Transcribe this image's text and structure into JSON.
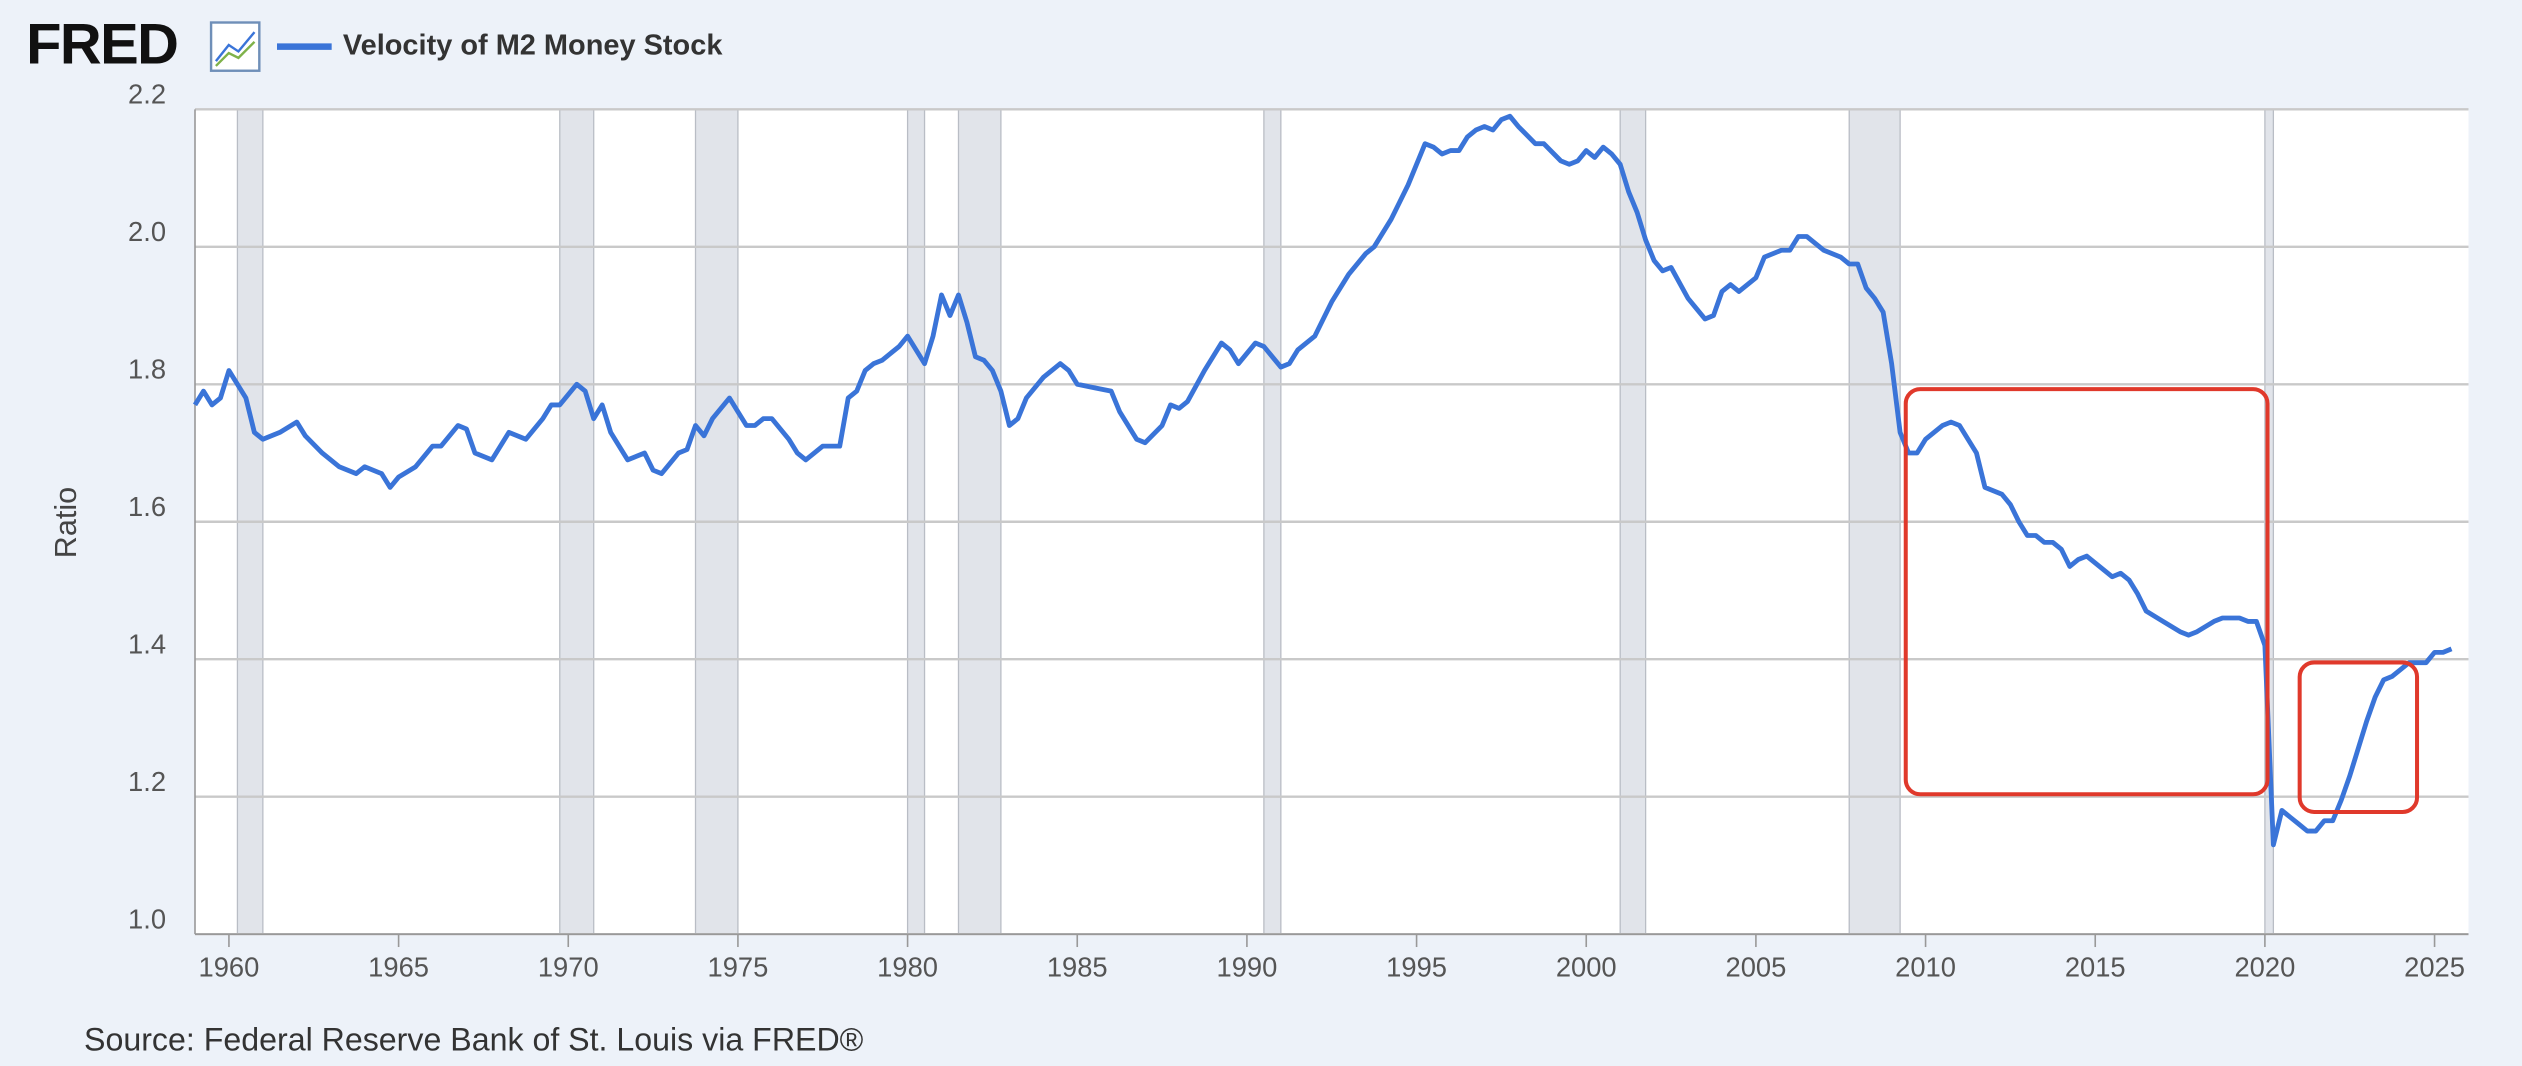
{
  "chart_data": {
    "type": "line",
    "logo": "FRED",
    "y_label": "Ratio",
    "source": "Source: Federal Reserve Bank of St. Louis via FRED®",
    "x": [
      1959,
      1959.25,
      1959.5,
      1959.75,
      1960,
      1960.25,
      1960.5,
      1960.75,
      1961,
      1961.5,
      1962,
      1962.25,
      1962.75,
      1963.25,
      1963.75,
      1964,
      1964.5,
      1964.75,
      1965,
      1965.5,
      1966,
      1966.25,
      1966.75,
      1967,
      1967.25,
      1967.75,
      1968.25,
      1968.75,
      1969.25,
      1969.5,
      1969.75,
      1970.25,
      1970.5,
      1970.75,
      1971,
      1971.25,
      1971.75,
      1972.25,
      1972.5,
      1972.75,
      1973.25,
      1973.5,
      1973.75,
      1974,
      1974.25,
      1974.75,
      1975,
      1975.25,
      1975.5,
      1975.75,
      1976,
      1976.5,
      1976.75,
      1977,
      1977.5,
      1978,
      1978.25,
      1978.5,
      1978.75,
      1979,
      1979.25,
      1979.75,
      1980,
      1980.25,
      1980.5,
      1980.75,
      1981,
      1981.25,
      1981.5,
      1981.75,
      1982,
      1982.25,
      1982.5,
      1982.75,
      1983,
      1983.25,
      1983.5,
      1984,
      1984.5,
      1984.75,
      1985,
      1985.5,
      1986,
      1986.25,
      1986.75,
      1987,
      1987.5,
      1987.75,
      1988,
      1988.25,
      1988.75,
      1989.25,
      1989.5,
      1989.75,
      1990.25,
      1990.5,
      1990.75,
      1991,
      1991.25,
      1991.5,
      1992,
      1992.5,
      1993,
      1993.5,
      1993.75,
      1994.25,
      1994.75,
      1995,
      1995.25,
      1995.5,
      1995.75,
      1996,
      1996.25,
      1996.5,
      1996.75,
      1997,
      1997.25,
      1997.5,
      1997.75,
      1998,
      1998.5,
      1998.75,
      1999.25,
      1999.5,
      1999.75,
      2000,
      2000.25,
      2000.5,
      2000.75,
      2001,
      2001.25,
      2001.5,
      2001.75,
      2002,
      2002.25,
      2002.5,
      2003,
      2003.25,
      2003.5,
      2003.75,
      2004,
      2004.25,
      2004.5,
      2005,
      2005.25,
      2005.75,
      2006,
      2006.25,
      2006.5,
      2006.75,
      2007,
      2007.5,
      2007.75,
      2008,
      2008.25,
      2008.5,
      2008.75,
      2009,
      2009.25,
      2009.5,
      2009.75,
      2010,
      2010.5,
      2010.75,
      2011,
      2011.25,
      2011.5,
      2011.75,
      2012.25,
      2012.5,
      2012.75,
      2013,
      2013.25,
      2013.5,
      2013.75,
      2014,
      2014.25,
      2014.5,
      2014.75,
      2015,
      2015.5,
      2015.75,
      2016,
      2016.25,
      2016.5,
      2017,
      2017.5,
      2017.75,
      2018,
      2018.5,
      2018.75,
      2019,
      2019.25,
      2019.5,
      2019.75,
      2020,
      2020.25,
      2020.5,
      2020.75,
      2021,
      2021.25,
      2021.5,
      2021.75,
      2022,
      2022.25,
      2022.5,
      2022.75,
      2023,
      2023.25,
      2023.5,
      2023.75,
      2024,
      2024.25,
      2024.5,
      2024.75,
      2025,
      2025.25,
      2025.5
    ],
    "series": [
      {
        "name": "Velocity of M2 Money Stock",
        "color": "#3a74d8",
        "values": [
          1.77,
          1.79,
          1.77,
          1.78,
          1.82,
          1.8,
          1.78,
          1.73,
          1.72,
          1.73,
          1.745,
          1.725,
          1.7,
          1.68,
          1.67,
          1.68,
          1.67,
          1.65,
          1.665,
          1.68,
          1.71,
          1.71,
          1.74,
          1.735,
          1.7,
          1.69,
          1.73,
          1.72,
          1.75,
          1.77,
          1.77,
          1.8,
          1.79,
          1.75,
          1.77,
          1.73,
          1.69,
          1.7,
          1.675,
          1.67,
          1.7,
          1.705,
          1.74,
          1.725,
          1.75,
          1.78,
          1.76,
          1.74,
          1.74,
          1.75,
          1.75,
          1.72,
          1.7,
          1.69,
          1.71,
          1.71,
          1.78,
          1.79,
          1.82,
          1.83,
          1.835,
          1.855,
          1.87,
          1.85,
          1.83,
          1.87,
          1.93,
          1.9,
          1.93,
          1.89,
          1.84,
          1.835,
          1.82,
          1.79,
          1.74,
          1.75,
          1.78,
          1.81,
          1.83,
          1.82,
          1.8,
          1.795,
          1.79,
          1.76,
          1.72,
          1.715,
          1.74,
          1.77,
          1.765,
          1.775,
          1.82,
          1.86,
          1.85,
          1.83,
          1.86,
          1.855,
          1.84,
          1.825,
          1.83,
          1.85,
          1.87,
          1.92,
          1.96,
          1.99,
          2,
          2.04,
          2.09,
          2.12,
          2.15,
          2.145,
          2.135,
          2.14,
          2.14,
          2.16,
          2.17,
          2.175,
          2.17,
          2.185,
          2.19,
          2.175,
          2.15,
          2.15,
          2.125,
          2.12,
          2.125,
          2.14,
          2.13,
          2.145,
          2.135,
          2.12,
          2.08,
          2.05,
          2.01,
          1.98,
          1.965,
          1.97,
          1.925,
          1.91,
          1.895,
          1.9,
          1.935,
          1.945,
          1.935,
          1.955,
          1.985,
          1.995,
          1.995,
          2.015,
          2.015,
          2.005,
          1.995,
          1.985,
          1.975,
          1.975,
          1.94,
          1.925,
          1.905,
          1.83,
          1.73,
          1.7,
          1.7,
          1.72,
          1.74,
          1.745,
          1.74,
          1.72,
          1.7,
          1.65,
          1.64,
          1.625,
          1.6,
          1.58,
          1.58,
          1.57,
          1.57,
          1.56,
          1.535,
          1.545,
          1.55,
          1.54,
          1.52,
          1.525,
          1.515,
          1.495,
          1.47,
          1.455,
          1.44,
          1.435,
          1.44,
          1.455,
          1.46,
          1.46,
          1.46,
          1.455,
          1.455,
          1.42,
          1.13,
          1.18,
          1.17,
          1.16,
          1.15,
          1.15,
          1.165,
          1.165,
          1.195,
          1.23,
          1.27,
          1.31,
          1.345,
          1.37,
          1.375,
          1.385,
          1.395,
          1.395,
          1.395,
          1.41,
          1.41,
          1.415
        ]
      }
    ],
    "recessions": [
      [
        1960.25,
        1961
      ],
      [
        1969.75,
        1970.75
      ],
      [
        1973.75,
        1975
      ],
      [
        1980,
        1980.5
      ],
      [
        1981.5,
        1982.75
      ],
      [
        1990.5,
        1991
      ],
      [
        2001,
        2001.75
      ],
      [
        2007.75,
        2009.25
      ],
      [
        2020,
        2020.25
      ]
    ],
    "xlim": [
      1959,
      2026
    ],
    "xticks": [
      1960,
      1965,
      1970,
      1975,
      1980,
      1985,
      1990,
      1995,
      2000,
      2005,
      2010,
      2015,
      2020,
      2025
    ],
    "ylim": [
      1,
      2.2
    ],
    "yticks": [
      {
        "value": 1,
        "label": "1.0"
      },
      1.2,
      1.4,
      1.6,
      1.8,
      {
        "value": 2,
        "label": "2.0"
      },
      2.2
    ],
    "grid": true
  }
}
